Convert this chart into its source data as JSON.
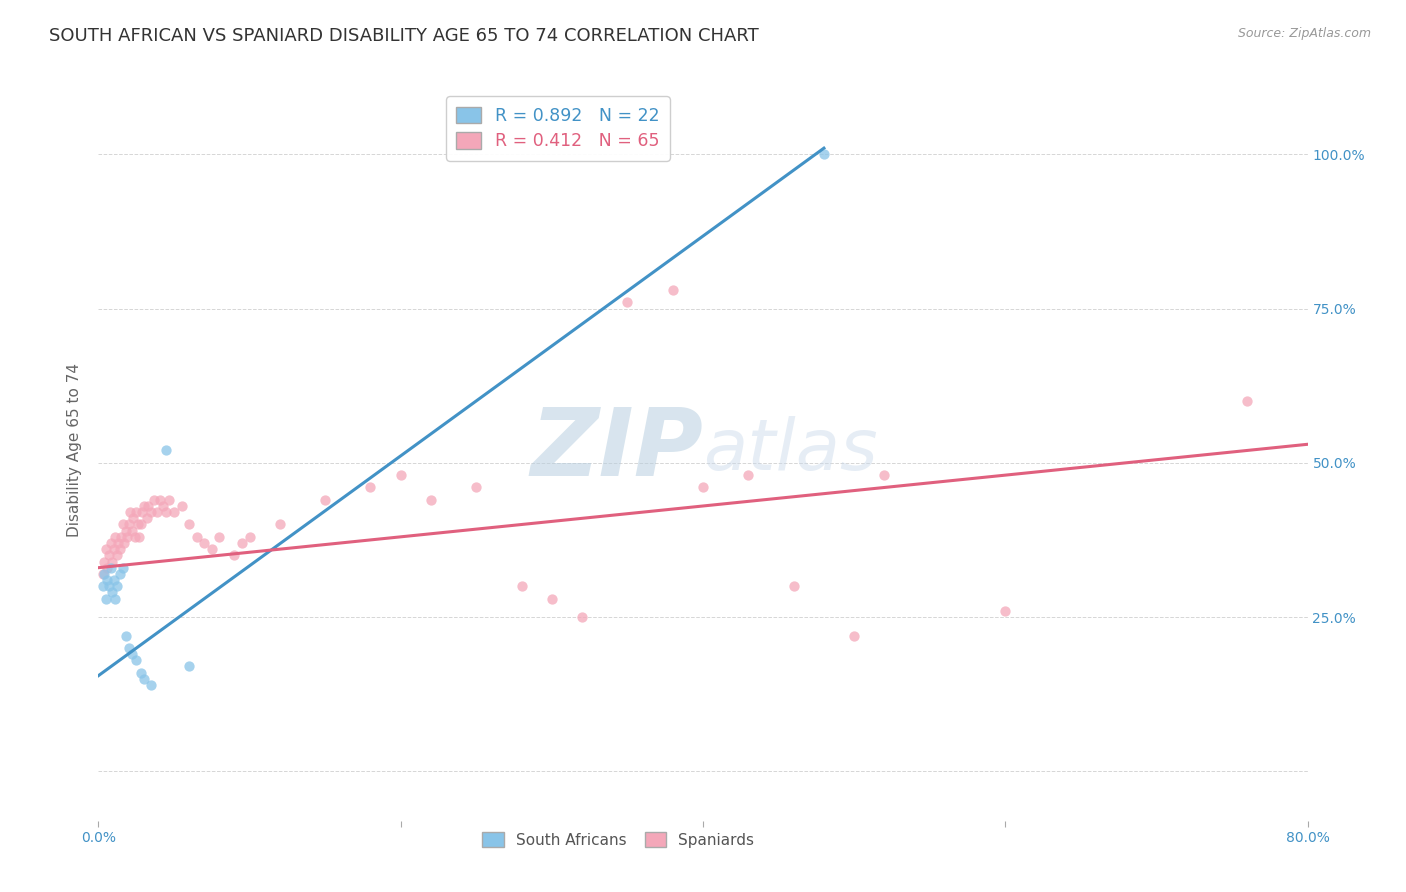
{
  "title": "SOUTH AFRICAN VS SPANIARD DISABILITY AGE 65 TO 74 CORRELATION CHART",
  "source": "Source: ZipAtlas.com",
  "ylabel": "Disability Age 65 to 74",
  "xlim": [
    0.0,
    0.8
  ],
  "ylim": [
    -0.08,
    1.12
  ],
  "blue_scatter": [
    [
      0.003,
      0.3
    ],
    [
      0.004,
      0.32
    ],
    [
      0.005,
      0.28
    ],
    [
      0.006,
      0.31
    ],
    [
      0.007,
      0.3
    ],
    [
      0.008,
      0.33
    ],
    [
      0.009,
      0.29
    ],
    [
      0.01,
      0.31
    ],
    [
      0.011,
      0.28
    ],
    [
      0.012,
      0.3
    ],
    [
      0.014,
      0.32
    ],
    [
      0.016,
      0.33
    ],
    [
      0.018,
      0.22
    ],
    [
      0.02,
      0.2
    ],
    [
      0.022,
      0.19
    ],
    [
      0.025,
      0.18
    ],
    [
      0.028,
      0.16
    ],
    [
      0.03,
      0.15
    ],
    [
      0.035,
      0.14
    ],
    [
      0.045,
      0.52
    ],
    [
      0.06,
      0.17
    ],
    [
      0.48,
      1.0
    ]
  ],
  "pink_scatter": [
    [
      0.003,
      0.32
    ],
    [
      0.004,
      0.34
    ],
    [
      0.005,
      0.36
    ],
    [
      0.006,
      0.33
    ],
    [
      0.007,
      0.35
    ],
    [
      0.008,
      0.37
    ],
    [
      0.009,
      0.34
    ],
    [
      0.01,
      0.36
    ],
    [
      0.011,
      0.38
    ],
    [
      0.012,
      0.35
    ],
    [
      0.013,
      0.37
    ],
    [
      0.014,
      0.36
    ],
    [
      0.015,
      0.38
    ],
    [
      0.016,
      0.4
    ],
    [
      0.017,
      0.37
    ],
    [
      0.018,
      0.39
    ],
    [
      0.019,
      0.38
    ],
    [
      0.02,
      0.4
    ],
    [
      0.021,
      0.42
    ],
    [
      0.022,
      0.39
    ],
    [
      0.023,
      0.41
    ],
    [
      0.024,
      0.38
    ],
    [
      0.025,
      0.42
    ],
    [
      0.026,
      0.4
    ],
    [
      0.027,
      0.38
    ],
    [
      0.028,
      0.4
    ],
    [
      0.029,
      0.42
    ],
    [
      0.03,
      0.43
    ],
    [
      0.032,
      0.41
    ],
    [
      0.033,
      0.43
    ],
    [
      0.035,
      0.42
    ],
    [
      0.037,
      0.44
    ],
    [
      0.039,
      0.42
    ],
    [
      0.041,
      0.44
    ],
    [
      0.043,
      0.43
    ],
    [
      0.045,
      0.42
    ],
    [
      0.047,
      0.44
    ],
    [
      0.05,
      0.42
    ],
    [
      0.055,
      0.43
    ],
    [
      0.06,
      0.4
    ],
    [
      0.065,
      0.38
    ],
    [
      0.07,
      0.37
    ],
    [
      0.075,
      0.36
    ],
    [
      0.08,
      0.38
    ],
    [
      0.09,
      0.35
    ],
    [
      0.095,
      0.37
    ],
    [
      0.1,
      0.38
    ],
    [
      0.12,
      0.4
    ],
    [
      0.15,
      0.44
    ],
    [
      0.18,
      0.46
    ],
    [
      0.2,
      0.48
    ],
    [
      0.22,
      0.44
    ],
    [
      0.25,
      0.46
    ],
    [
      0.28,
      0.3
    ],
    [
      0.3,
      0.28
    ],
    [
      0.32,
      0.25
    ],
    [
      0.35,
      0.76
    ],
    [
      0.38,
      0.78
    ],
    [
      0.4,
      0.46
    ],
    [
      0.43,
      0.48
    ],
    [
      0.46,
      0.3
    ],
    [
      0.5,
      0.22
    ],
    [
      0.52,
      0.48
    ],
    [
      0.6,
      0.26
    ],
    [
      0.76,
      0.6
    ]
  ],
  "blue_line_pts": [
    [
      0.0,
      0.155
    ],
    [
      0.48,
      1.01
    ]
  ],
  "pink_line_pts": [
    [
      0.0,
      0.33
    ],
    [
      0.8,
      0.53
    ]
  ],
  "background_color": "#ffffff",
  "grid_color": "#cccccc",
  "scatter_size": 55,
  "scatter_alpha": 0.75,
  "blue_color": "#89c4e8",
  "pink_color": "#f4a7b9",
  "blue_line_color": "#4292c6",
  "pink_line_color": "#e0607e",
  "title_fontsize": 13,
  "axis_label_fontsize": 11,
  "tick_fontsize": 10,
  "source_fontsize": 9,
  "right_ytick_color": "#4292c6",
  "xtick_color": "#4292c6",
  "legend1_blue_text": "R = 0.892   N = 22",
  "legend1_pink_text": "R = 0.412   N = 65",
  "legend2_blue": "South Africans",
  "legend2_pink": "Spaniards",
  "watermark_zip_color": "#b8cfe0",
  "watermark_atlas_color": "#c8d8ea"
}
